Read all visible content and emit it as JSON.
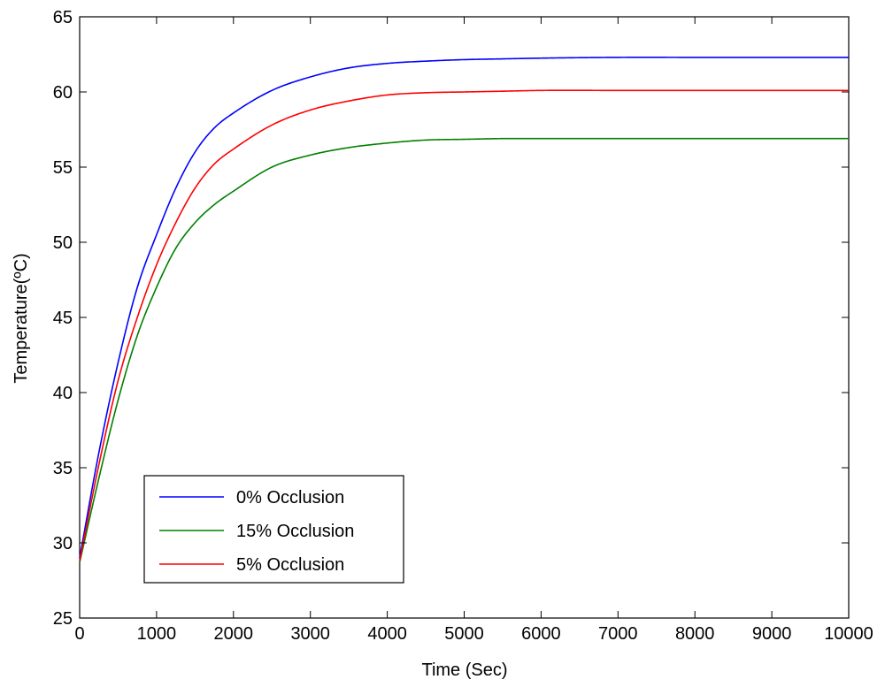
{
  "chart_data": {
    "type": "line",
    "title": "",
    "xlabel": "Time (Sec)",
    "ylabel": "Temperature(ºC)",
    "xlim": [
      0,
      10000
    ],
    "ylim": [
      25,
      65
    ],
    "xticks": [
      0,
      1000,
      2000,
      3000,
      4000,
      5000,
      6000,
      7000,
      8000,
      9000,
      10000
    ],
    "yticks": [
      25,
      30,
      35,
      40,
      45,
      50,
      55,
      60,
      65
    ],
    "xtick_labels": [
      "0",
      "1000",
      "2000",
      "3000",
      "4000",
      "5000",
      "6000",
      "7000",
      "8000",
      "9000",
      "10000"
    ],
    "ytick_labels": [
      "25",
      "30",
      "35",
      "40",
      "45",
      "50",
      "55",
      "60",
      "65"
    ],
    "grid": false,
    "legend_position": "bottom-left",
    "x": [
      0,
      250,
      500,
      750,
      1000,
      1250,
      1500,
      1750,
      2000,
      2500,
      3000,
      3500,
      4000,
      4500,
      5000,
      5500,
      6000,
      7000,
      8000,
      9000,
      10000
    ],
    "series": [
      {
        "name": "0% Occlusion",
        "color": "#0000ff",
        "values": [
          29.0,
          36.0,
          42.0,
          47.0,
          50.5,
          53.6,
          56.0,
          57.6,
          58.6,
          60.1,
          61.0,
          61.6,
          61.9,
          62.05,
          62.15,
          62.2,
          62.25,
          62.3,
          62.3,
          62.3,
          62.3
        ]
      },
      {
        "name": "15% Occlusion",
        "color": "#008000",
        "values": [
          28.7,
          34.3,
          39.5,
          43.8,
          47.0,
          49.6,
          51.3,
          52.5,
          53.4,
          55.0,
          55.8,
          56.3,
          56.6,
          56.8,
          56.85,
          56.9,
          56.9,
          56.9,
          56.9,
          56.9,
          56.9
        ]
      },
      {
        "name": "5% Occlusion",
        "color": "#ff0000",
        "values": [
          28.8,
          35.2,
          40.8,
          45.0,
          48.5,
          51.3,
          53.6,
          55.2,
          56.2,
          57.8,
          58.8,
          59.4,
          59.8,
          59.95,
          60.0,
          60.05,
          60.1,
          60.1,
          60.1,
          60.1,
          60.1
        ]
      }
    ]
  }
}
